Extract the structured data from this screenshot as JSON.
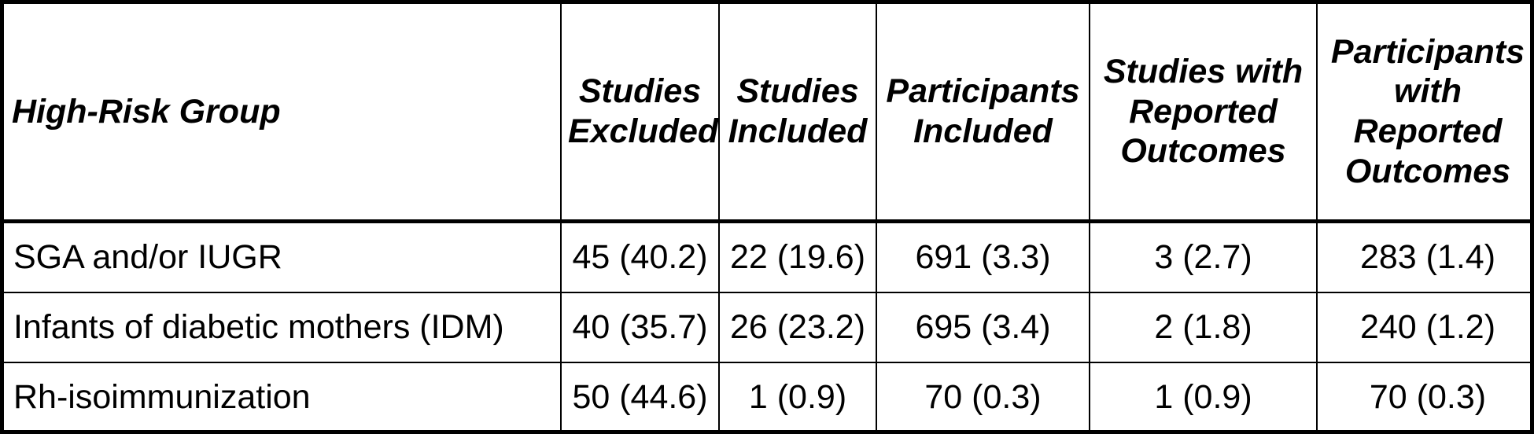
{
  "table": {
    "headers": [
      "High-Risk Group",
      "Studies Excluded",
      "Studies Included",
      "Participants Included",
      "Studies with Reported Outcomes",
      "Participants with Reported Outcomes"
    ],
    "rows": [
      [
        "SGA and/or IUGR",
        "45 (40.2)",
        "22 (19.6)",
        "691 (3.3)",
        "3 (2.7)",
        "283 (1.4)"
      ],
      [
        "Infants of diabetic mothers (IDM)",
        "40 (35.7)",
        "26 (23.2)",
        "695 (3.4)",
        "2 (1.8)",
        "240 (1.2)"
      ],
      [
        "Rh-isoimmunization",
        "50 (44.6)",
        "1 (0.9)",
        "70 (0.3)",
        "1 (0.9)",
        "70 (0.3)"
      ]
    ]
  }
}
